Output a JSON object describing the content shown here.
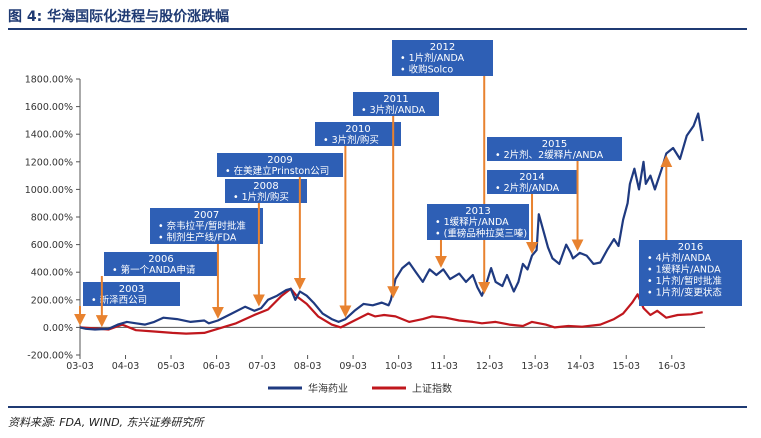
{
  "header": {
    "title": "图 4: 华海国际化进程与股价涨跌幅"
  },
  "footer": {
    "source": "资料来源: FDA, WIND, 东兴证券研究所"
  },
  "chart_data": {
    "type": "line",
    "title": "图 4: 华海国际化进程与股价涨跌幅",
    "xlabel": "",
    "ylabel": "",
    "x_ticks": [
      "03-03",
      "04-03",
      "05-03",
      "06-03",
      "07-03",
      "08-03",
      "09-03",
      "10-03",
      "11-03",
      "12-03",
      "13-03",
      "14-03",
      "15-03",
      "16-03"
    ],
    "y_ticks": [
      "-200.00%",
      "0.00%",
      "200.00%",
      "400.00%",
      "600.00%",
      "800.00%",
      "1000.00%",
      "1200.00%",
      "1400.00%",
      "1600.00%",
      "1800.00%"
    ],
    "ylim": [
      -200,
      1800
    ],
    "xlim": [
      2003.17,
      2016.9
    ],
    "grid": false,
    "legend_position": "bottom",
    "colors": {
      "huahai": "#1f3a80",
      "index": "#c0171d",
      "annotation": "#2e5fb5",
      "arrow": "#e8822f"
    },
    "series": [
      {
        "name": "华海药业",
        "points": [
          [
            2003.17,
            0
          ],
          [
            2003.3,
            -10
          ],
          [
            2003.5,
            -15
          ],
          [
            2003.8,
            -10
          ],
          [
            2004.0,
            20
          ],
          [
            2004.2,
            40
          ],
          [
            2004.4,
            30
          ],
          [
            2004.6,
            20
          ],
          [
            2004.8,
            40
          ],
          [
            2005.0,
            70
          ],
          [
            2005.3,
            60
          ],
          [
            2005.6,
            40
          ],
          [
            2005.9,
            50
          ],
          [
            2006.0,
            30
          ],
          [
            2006.2,
            50
          ],
          [
            2006.5,
            100
          ],
          [
            2006.8,
            150
          ],
          [
            2007.0,
            120
          ],
          [
            2007.15,
            140
          ],
          [
            2007.3,
            200
          ],
          [
            2007.5,
            230
          ],
          [
            2007.7,
            270
          ],
          [
            2007.8,
            280
          ],
          [
            2007.9,
            200
          ],
          [
            2008.0,
            260
          ],
          [
            2008.15,
            230
          ],
          [
            2008.3,
            180
          ],
          [
            2008.5,
            100
          ],
          [
            2008.7,
            60
          ],
          [
            2008.85,
            40
          ],
          [
            2009.0,
            60
          ],
          [
            2009.2,
            120
          ],
          [
            2009.4,
            170
          ],
          [
            2009.6,
            160
          ],
          [
            2009.8,
            180
          ],
          [
            2009.95,
            160
          ],
          [
            2010.0,
            200
          ],
          [
            2010.1,
            350
          ],
          [
            2010.25,
            430
          ],
          [
            2010.4,
            470
          ],
          [
            2010.55,
            400
          ],
          [
            2010.7,
            330
          ],
          [
            2010.85,
            420
          ],
          [
            2011.0,
            380
          ],
          [
            2011.15,
            420
          ],
          [
            2011.3,
            350
          ],
          [
            2011.5,
            390
          ],
          [
            2011.65,
            330
          ],
          [
            2011.8,
            380
          ],
          [
            2011.9,
            290
          ],
          [
            2012.0,
            230
          ],
          [
            2012.1,
            320
          ],
          [
            2012.2,
            430
          ],
          [
            2012.3,
            330
          ],
          [
            2012.45,
            300
          ],
          [
            2012.55,
            380
          ],
          [
            2012.7,
            260
          ],
          [
            2012.8,
            330
          ],
          [
            2012.9,
            460
          ],
          [
            2013.0,
            420
          ],
          [
            2013.1,
            520
          ],
          [
            2013.2,
            560
          ],
          [
            2013.25,
            820
          ],
          [
            2013.35,
            700
          ],
          [
            2013.45,
            580
          ],
          [
            2013.55,
            500
          ],
          [
            2013.7,
            460
          ],
          [
            2013.85,
            600
          ],
          [
            2013.95,
            540
          ],
          [
            2014.0,
            500
          ],
          [
            2014.15,
            540
          ],
          [
            2014.3,
            520
          ],
          [
            2014.45,
            460
          ],
          [
            2014.6,
            470
          ],
          [
            2014.75,
            560
          ],
          [
            2014.9,
            640
          ],
          [
            2015.0,
            590
          ],
          [
            2015.1,
            780
          ],
          [
            2015.2,
            900
          ],
          [
            2015.25,
            1040
          ],
          [
            2015.35,
            1150
          ],
          [
            2015.45,
            1000
          ],
          [
            2015.55,
            1200
          ],
          [
            2015.6,
            1040
          ],
          [
            2015.7,
            1100
          ],
          [
            2015.8,
            1000
          ],
          [
            2015.95,
            1150
          ],
          [
            2016.05,
            1260
          ],
          [
            2016.2,
            1300
          ],
          [
            2016.35,
            1220
          ],
          [
            2016.5,
            1390
          ],
          [
            2016.65,
            1460
          ],
          [
            2016.75,
            1550
          ],
          [
            2016.85,
            1350
          ]
        ]
      },
      {
        "name": "上证指数",
        "points": [
          [
            2003.17,
            0
          ],
          [
            2003.4,
            -5
          ],
          [
            2003.8,
            -15
          ],
          [
            2004.1,
            20
          ],
          [
            2004.4,
            -20
          ],
          [
            2004.8,
            -30
          ],
          [
            2005.2,
            -40
          ],
          [
            2005.5,
            -45
          ],
          [
            2005.9,
            -40
          ],
          [
            2006.2,
            -10
          ],
          [
            2006.6,
            30
          ],
          [
            2007.0,
            90
          ],
          [
            2007.3,
            130
          ],
          [
            2007.6,
            230
          ],
          [
            2007.8,
            280
          ],
          [
            2007.95,
            220
          ],
          [
            2008.15,
            170
          ],
          [
            2008.4,
            80
          ],
          [
            2008.7,
            20
          ],
          [
            2008.9,
            0
          ],
          [
            2009.2,
            50
          ],
          [
            2009.5,
            100
          ],
          [
            2009.65,
            80
          ],
          [
            2009.85,
            90
          ],
          [
            2010.1,
            80
          ],
          [
            2010.4,
            40
          ],
          [
            2010.7,
            60
          ],
          [
            2010.9,
            80
          ],
          [
            2011.2,
            70
          ],
          [
            2011.5,
            50
          ],
          [
            2011.8,
            40
          ],
          [
            2012.0,
            30
          ],
          [
            2012.3,
            40
          ],
          [
            2012.6,
            20
          ],
          [
            2012.9,
            10
          ],
          [
            2013.1,
            40
          ],
          [
            2013.4,
            20
          ],
          [
            2013.6,
            0
          ],
          [
            2013.9,
            10
          ],
          [
            2014.2,
            5
          ],
          [
            2014.6,
            20
          ],
          [
            2014.9,
            60
          ],
          [
            2015.1,
            100
          ],
          [
            2015.3,
            180
          ],
          [
            2015.42,
            240
          ],
          [
            2015.55,
            140
          ],
          [
            2015.7,
            90
          ],
          [
            2015.85,
            120
          ],
          [
            2016.05,
            70
          ],
          [
            2016.3,
            90
          ],
          [
            2016.6,
            95
          ],
          [
            2016.85,
            110
          ]
        ]
      }
    ],
    "annotations": [
      {
        "year": "2003",
        "items": [
          "新泽西公司"
        ],
        "arrow_x": 2003.17
      },
      {
        "year": "2006",
        "items": [
          "第一个ANDA申请"
        ],
        "arrow_x": 2003.65
      },
      {
        "year": "2007",
        "items": [
          "奈韦拉平/暂时批准",
          "制剂生产线/FDA"
        ],
        "arrow_x": 2006.2
      },
      {
        "year": "2008",
        "items": [
          "1片剂/购买"
        ],
        "arrow_x": 2007.1
      },
      {
        "year": "2009",
        "items": [
          "在美建立Prinston公司"
        ],
        "arrow_x": 2008.0
      },
      {
        "year": "2010",
        "items": [
          "3片剂/购买"
        ],
        "arrow_x": 2009.0
      },
      {
        "year": "2011",
        "items": [
          "3片剂/ANDA"
        ],
        "arrow_x": 2010.05
      },
      {
        "year": "2012",
        "items": [
          "1片剂/ANDA",
          "收购Solco"
        ],
        "arrow_x": 2012.05
      },
      {
        "year": "2013",
        "items": [
          "1缓释片/ANDA",
          "(重磅品种拉莫三嗪)"
        ],
        "arrow_x": 2011.1
      },
      {
        "year": "2014",
        "items": [
          "2片剂/ANDA"
        ],
        "arrow_x": 2013.1
      },
      {
        "year": "2015",
        "items": [
          "2片剂、2缓释片/ANDA"
        ],
        "arrow_x": 2014.1
      },
      {
        "year": "2016",
        "items": [
          "4片剂/ANDA",
          "1缓释片/ANDA",
          "1片剂/暂时批准",
          "1片剂/变更状态"
        ],
        "arrow_x": 2016.05
      }
    ]
  }
}
